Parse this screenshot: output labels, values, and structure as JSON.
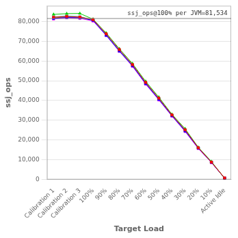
{
  "chart_data": {
    "type": "line",
    "xlabel": "Target Load",
    "ylabel": "ssj_ops",
    "categories": [
      "Calibration 1",
      "Calibration 2",
      "Calibration 3",
      "100%",
      "90%",
      "80%",
      "70%",
      "60%",
      "50%",
      "40%",
      "30%",
      "20%",
      "10%",
      "Active Idle"
    ],
    "series": [
      {
        "color": "#ff0000",
        "marker": "square",
        "values": [
          82200,
          82600,
          82300,
          81000,
          73800,
          65800,
          58200,
          49200,
          41200,
          32700,
          25200,
          16100,
          8800,
          800
        ]
      },
      {
        "color": "#00cc00",
        "marker": "triangle-up",
        "values": [
          83600,
          84000,
          84100,
          81200,
          74200,
          66200,
          58700,
          49700,
          41700,
          33000,
          25700,
          16300,
          9100,
          600
        ]
      },
      {
        "color": "#0000ff",
        "marker": "square",
        "values": [
          81600,
          82100,
          81900,
          80600,
          73100,
          65100,
          57600,
          48600,
          40600,
          32300,
          24600,
          15900,
          8700,
          700
        ]
      },
      {
        "color": "#ff00ff",
        "marker": "square",
        "values": [
          81300,
          81900,
          81600,
          80300,
          72900,
          64900,
          57300,
          48300,
          40300,
          32100,
          24300,
          15700,
          8600,
          650
        ]
      },
      {
        "color": "#00cccc",
        "marker": "triangle-down",
        "values": [
          82300,
          82800,
          82500,
          80800,
          73400,
          65400,
          57900,
          48900,
          40900,
          32500,
          24900,
          16000,
          8750,
          720
        ]
      },
      {
        "color": "#888800",
        "marker": "square",
        "values": [
          81900,
          82300,
          82100,
          80700,
          73200,
          65200,
          57700,
          48700,
          40700,
          32400,
          24700,
          15950,
          8660,
          680
        ]
      }
    ],
    "annotations": [
      {
        "type": "hline",
        "y": 81534,
        "text": "ssj_ops@100% per JVM=81,534",
        "color": "#888888"
      }
    ],
    "ylim": [
      0,
      88000
    ],
    "yticks": [
      0,
      {
        "value": 10000,
        "label": "10,000"
      },
      {
        "value": 20000,
        "label": "20,000"
      },
      {
        "value": 30000,
        "label": "30,000"
      },
      {
        "value": 40000,
        "label": "40,000"
      },
      {
        "value": 50000,
        "label": "50,000"
      },
      {
        "value": 60000,
        "label": "60,000"
      },
      {
        "value": 70000,
        "label": "70,000"
      },
      {
        "value": 80000,
        "label": "80,000"
      }
    ],
    "grid": "y"
  }
}
